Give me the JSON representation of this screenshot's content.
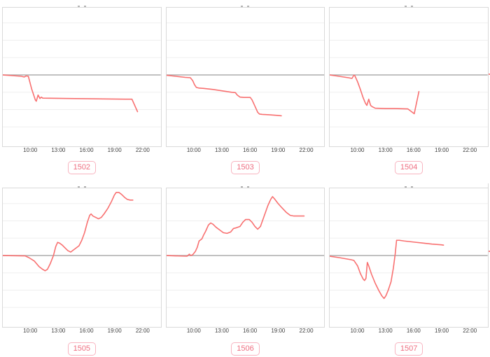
{
  "colors": {
    "line": "#f87070",
    "zero_line": "#b3b3b3",
    "grid": "#efefef",
    "panel_border": "#d9d9d9",
    "tick_text": "#3f3f3f",
    "tag_border": "#f8b4c0",
    "tag_text": "#ee6e80"
  },
  "chart_data": {
    "type": "line",
    "title": "",
    "legend": "none",
    "x_axis": {
      "tick_labels": [
        "10:00",
        "13:00",
        "16:00",
        "19:00",
        "22:00"
      ],
      "tick_hours": [
        10,
        13,
        16,
        19,
        22
      ],
      "hour_range": [
        7,
        24
      ]
    },
    "y_axis": {
      "label": "",
      "tick_labels_visible": false,
      "note": "no y tick labels visible; values are vertical offsets from the gray zero baseline, estimated in screen px",
      "range": [
        -103,
        97
      ],
      "zero_baseline": 0
    },
    "grid": {
      "visible": true,
      "horizontal_spacing": 25
    },
    "charts": [
      {
        "id": "1502",
        "row": 0,
        "col": 0,
        "points": [
          [
            7.0,
            0
          ],
          [
            8.0,
            -1
          ],
          [
            9.0,
            -2
          ],
          [
            9.3,
            -3
          ],
          [
            9.5,
            -1.5
          ],
          [
            9.75,
            -2
          ],
          [
            10.1,
            -20
          ],
          [
            10.5,
            -36
          ],
          [
            10.6,
            -38
          ],
          [
            10.8,
            -29
          ],
          [
            11.0,
            -34
          ],
          [
            11.15,
            -32
          ],
          [
            11.3,
            -33.5
          ],
          [
            14.0,
            -34
          ],
          [
            17.0,
            -34.5
          ],
          [
            20.2,
            -35
          ],
          [
            20.9,
            -35
          ],
          [
            21.5,
            -53
          ]
        ]
      },
      {
        "id": "1503",
        "row": 0,
        "col": 1,
        "points": [
          [
            7.0,
            -0.5
          ],
          [
            8.0,
            -2
          ],
          [
            9.0,
            -3.5
          ],
          [
            9.55,
            -4
          ],
          [
            9.8,
            -8
          ],
          [
            10.0,
            -14
          ],
          [
            10.2,
            -18
          ],
          [
            10.5,
            -19
          ],
          [
            11.0,
            -19.5
          ],
          [
            12.0,
            -21
          ],
          [
            13.0,
            -23
          ],
          [
            14.0,
            -25
          ],
          [
            14.4,
            -25.5
          ],
          [
            14.6,
            -29
          ],
          [
            14.9,
            -32
          ],
          [
            15.3,
            -32.5
          ],
          [
            16.0,
            -32.5
          ],
          [
            16.2,
            -36
          ],
          [
            16.5,
            -45
          ],
          [
            16.8,
            -54
          ],
          [
            17.0,
            -56.5
          ],
          [
            17.3,
            -57
          ],
          [
            18.0,
            -57.5
          ],
          [
            19.0,
            -58.5
          ],
          [
            19.35,
            -59
          ]
        ]
      },
      {
        "id": "1504",
        "row": 0,
        "col": 2,
        "points": [
          [
            7.0,
            0
          ],
          [
            8.0,
            -2
          ],
          [
            9.0,
            -4
          ],
          [
            9.4,
            -5
          ],
          [
            9.6,
            -0.5
          ],
          [
            9.7,
            -1
          ],
          [
            10.0,
            -10
          ],
          [
            10.3,
            -21
          ],
          [
            10.6,
            -33
          ],
          [
            10.85,
            -41
          ],
          [
            11.0,
            -44
          ],
          [
            11.2,
            -35
          ],
          [
            11.4,
            -44
          ],
          [
            11.6,
            -46
          ],
          [
            11.9,
            -48
          ],
          [
            13.0,
            -48.5
          ],
          [
            14.0,
            -48.5
          ],
          [
            15.4,
            -49
          ],
          [
            16.0,
            -55
          ],
          [
            16.1,
            -56
          ],
          [
            16.6,
            -24
          ]
        ]
      },
      {
        "id": "1505",
        "row": 1,
        "col": 0,
        "points": [
          [
            7.0,
            0
          ],
          [
            9.4,
            -0.5
          ],
          [
            9.8,
            -3
          ],
          [
            10.4,
            -8
          ],
          [
            10.9,
            -16
          ],
          [
            11.3,
            -20
          ],
          [
            11.55,
            -22
          ],
          [
            11.8,
            -20
          ],
          [
            12.1,
            -12
          ],
          [
            12.45,
            0
          ],
          [
            12.7,
            13
          ],
          [
            12.9,
            19
          ],
          [
            13.1,
            18
          ],
          [
            13.4,
            15
          ],
          [
            13.7,
            11
          ],
          [
            14.0,
            7
          ],
          [
            14.3,
            5
          ],
          [
            14.6,
            8
          ],
          [
            14.9,
            11
          ],
          [
            15.2,
            14
          ],
          [
            15.5,
            22
          ],
          [
            15.8,
            33
          ],
          [
            16.1,
            48
          ],
          [
            16.35,
            58
          ],
          [
            16.5,
            60
          ],
          [
            16.7,
            57
          ],
          [
            17.0,
            55
          ],
          [
            17.3,
            53
          ],
          [
            17.6,
            55
          ],
          [
            17.9,
            60
          ],
          [
            18.3,
            68
          ],
          [
            18.7,
            78
          ],
          [
            19.0,
            87
          ],
          [
            19.2,
            91
          ],
          [
            19.5,
            91
          ],
          [
            19.8,
            88
          ],
          [
            20.1,
            84
          ],
          [
            20.4,
            81
          ],
          [
            20.7,
            80
          ],
          [
            21.0,
            80
          ]
        ]
      },
      {
        "id": "1506",
        "row": 1,
        "col": 1,
        "points": [
          [
            7.0,
            0
          ],
          [
            8.0,
            -0.5
          ],
          [
            9.2,
            -1
          ],
          [
            9.45,
            2
          ],
          [
            9.6,
            0
          ],
          [
            9.8,
            1
          ],
          [
            10.1,
            6
          ],
          [
            10.3,
            12
          ],
          [
            10.5,
            21
          ],
          [
            10.8,
            24
          ],
          [
            11.0,
            30
          ],
          [
            11.2,
            35
          ],
          [
            11.5,
            44
          ],
          [
            11.75,
            47
          ],
          [
            12.0,
            45
          ],
          [
            12.3,
            41
          ],
          [
            12.7,
            37
          ],
          [
            13.1,
            33
          ],
          [
            13.5,
            32
          ],
          [
            13.9,
            34
          ],
          [
            14.2,
            39
          ],
          [
            14.5,
            40
          ],
          [
            14.9,
            42
          ],
          [
            15.2,
            48
          ],
          [
            15.5,
            52
          ],
          [
            15.9,
            52
          ],
          [
            16.2,
            48
          ],
          [
            16.5,
            42
          ],
          [
            16.8,
            38
          ],
          [
            17.1,
            42
          ],
          [
            17.5,
            57
          ],
          [
            17.9,
            72
          ],
          [
            18.2,
            81
          ],
          [
            18.4,
            85
          ],
          [
            18.6,
            82
          ],
          [
            19.0,
            75
          ],
          [
            19.4,
            69
          ],
          [
            19.9,
            62
          ],
          [
            20.3,
            58
          ],
          [
            20.7,
            57
          ],
          [
            21.3,
            57
          ],
          [
            21.8,
            57
          ]
        ]
      },
      {
        "id": "1507",
        "row": 1,
        "col": 2,
        "points": [
          [
            7.0,
            -1
          ],
          [
            8.0,
            -3
          ],
          [
            9.3,
            -6
          ],
          [
            9.6,
            -7
          ],
          [
            10.0,
            -15
          ],
          [
            10.3,
            -26
          ],
          [
            10.6,
            -34
          ],
          [
            10.75,
            -36
          ],
          [
            10.9,
            -33
          ],
          [
            11.05,
            -10
          ],
          [
            11.2,
            -15
          ],
          [
            11.5,
            -27
          ],
          [
            11.9,
            -40
          ],
          [
            12.3,
            -51
          ],
          [
            12.6,
            -58
          ],
          [
            12.85,
            -62
          ],
          [
            13.05,
            -58
          ],
          [
            13.3,
            -50
          ],
          [
            13.6,
            -38
          ],
          [
            13.85,
            -18
          ],
          [
            14.05,
            2
          ],
          [
            14.2,
            22
          ],
          [
            14.5,
            22
          ],
          [
            15.0,
            21
          ],
          [
            16.0,
            19.5
          ],
          [
            17.0,
            18
          ],
          [
            18.0,
            16.5
          ],
          [
            19.0,
            15.5
          ],
          [
            19.25,
            15
          ]
        ]
      }
    ]
  },
  "badges": [
    "1502",
    "1503",
    "1504",
    "1505",
    "1506",
    "1507"
  ]
}
